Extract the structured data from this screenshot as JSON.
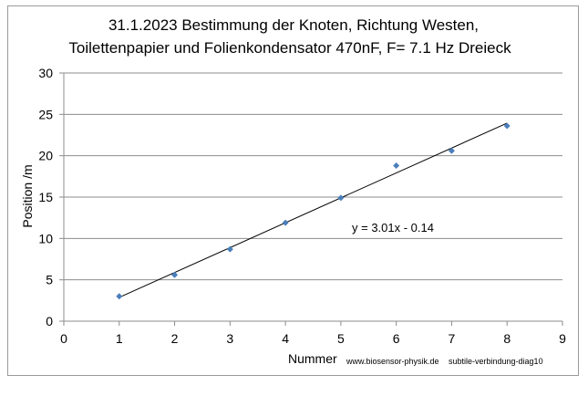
{
  "chart_data": {
    "type": "scatter",
    "title_line1": "31.1.2023  Bestimmung der Knoten, Richtung Westen,",
    "title_line2": "Toilettenpapier und  Folienkondensator 470nF, F= 7.1 Hz Dreieck",
    "xlabel": "Nummer",
    "ylabel": "Position /m",
    "xlim": [
      0,
      9
    ],
    "ylim": [
      0,
      30
    ],
    "xticks": [
      0,
      1,
      2,
      3,
      4,
      5,
      6,
      7,
      8,
      9
    ],
    "yticks": [
      0,
      5,
      10,
      15,
      20,
      25,
      30
    ],
    "grid": "horizontal",
    "series": [
      {
        "x": [
          1,
          2,
          3,
          4,
          5,
          6,
          7,
          8
        ],
        "y": [
          3.0,
          5.6,
          8.7,
          11.9,
          14.9,
          18.8,
          20.6,
          23.6
        ],
        "color": "#4a7ebb"
      }
    ],
    "trendline": {
      "slope": 3.01,
      "intercept": -0.14,
      "x_range": [
        1,
        8
      ],
      "label": "y = 3.01x - 0.14"
    },
    "footer_left": "www.biosensor-physik.de",
    "footer_right": "subtile-verbindung-diag10"
  }
}
